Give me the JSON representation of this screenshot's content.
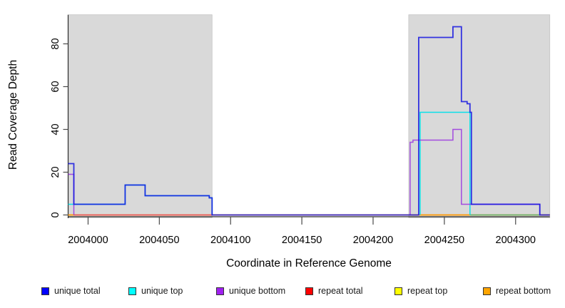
{
  "chart_data": {
    "type": "line",
    "subtype": "step-coverage-profile",
    "title": "",
    "xlabel": "Coordinate in Reference Genome",
    "ylabel": "Read Coverage Depth",
    "x_range": [
      2003986,
      2004324
    ],
    "y_range": [
      0,
      93.6
    ],
    "x_ticks": [
      2004000,
      2004050,
      2004100,
      2004150,
      2004200,
      2004250,
      2004300
    ],
    "y_ticks": [
      0,
      20,
      40,
      60,
      80
    ],
    "grid": false,
    "legend_position": "bottom",
    "plot_bg": "#ffffff",
    "shaded_regions": [
      {
        "name": "shaded-region-left",
        "x_start": 2003986,
        "x_end": 2004087,
        "color": "#d9d9d9",
        "edge": "#c4c4c4"
      },
      {
        "name": "shaded-region-right",
        "x_start": 2004225,
        "x_end": 2004324,
        "color": "#d9d9d9",
        "edge": "#c4c4c4"
      }
    ],
    "series": [
      {
        "name": "repeat top",
        "color": "#ffff00",
        "draw_color": "#ffff00",
        "width": 1.3,
        "opacity": 1,
        "paths": [
          [
            [
              2003986,
              0
            ],
            [
              2004324,
              0
            ]
          ]
        ]
      },
      {
        "name": "repeat total",
        "color": "#ff0000",
        "draw_color": "#ff0000",
        "width": 1.3,
        "opacity": 1,
        "paths": [
          [
            [
              2003986,
              0
            ],
            [
              2004324,
              0
            ]
          ]
        ]
      },
      {
        "name": "repeat bottom",
        "color": "#ffa500",
        "draw_color": "#ff9d00",
        "width": 1.5,
        "opacity": 1,
        "paths": [
          [
            [
              2003986,
              0
            ],
            [
              2004324,
              0
            ]
          ]
        ]
      },
      {
        "name": "overlap repeat-total and unique-bottom at zero",
        "color": "#e85565",
        "draw_color": "#e85565",
        "width": 1.4,
        "opacity": 1,
        "paths": [
          [
            [
              2003990,
              0
            ],
            [
              2004087,
              0
            ]
          ]
        ]
      },
      {
        "name": "overlap unique-top and repeat-top at zero",
        "color": "#5cb87a",
        "draw_color": "#5cb87a",
        "width": 1.4,
        "opacity": 1,
        "paths": [
          [
            [
              2004268,
              0
            ],
            [
              2004317,
              0
            ]
          ]
        ]
      },
      {
        "name": "unique top",
        "color": "#00ffff",
        "draw_color": "#00e0ea",
        "width": 1.5,
        "opacity": 0.95,
        "paths": [
          [
            [
              2003986,
              5
            ],
            [
              2004026,
              5
            ],
            [
              2004026,
              14
            ],
            [
              2004040,
              14
            ],
            [
              2004040,
              9
            ],
            [
              2004085,
              9
            ],
            [
              2004085,
              8
            ],
            [
              2004087,
              8
            ],
            [
              2004087,
              0
            ]
          ],
          [
            [
              2004233,
              0
            ],
            [
              2004233,
              48
            ],
            [
              2004268,
              48
            ],
            [
              2004268,
              0
            ]
          ]
        ]
      },
      {
        "name": "unique bottom",
        "color": "#a020f0",
        "draw_color": "#9932e0",
        "width": 1.5,
        "opacity": 0.85,
        "paths": [
          [
            [
              2003986,
              19
            ],
            [
              2003990,
              19
            ],
            [
              2003990,
              0
            ]
          ],
          [
            [
              2004226,
              0
            ],
            [
              2004226,
              34
            ],
            [
              2004228,
              34
            ],
            [
              2004228,
              35
            ],
            [
              2004256,
              35
            ],
            [
              2004256,
              40
            ],
            [
              2004262,
              40
            ],
            [
              2004262,
              5
            ],
            [
              2004317,
              5
            ],
            [
              2004317,
              0
            ]
          ]
        ]
      },
      {
        "name": "unique total",
        "color": "#0000ff",
        "draw_color": "#1414e0",
        "width": 1.8,
        "opacity": 0.85,
        "paths": [
          [
            [
              2003986,
              24
            ],
            [
              2003990,
              24
            ],
            [
              2003990,
              5
            ],
            [
              2004026,
              5
            ],
            [
              2004026,
              14
            ],
            [
              2004040,
              14
            ],
            [
              2004040,
              9
            ],
            [
              2004085,
              9
            ],
            [
              2004085,
              8
            ],
            [
              2004087,
              8
            ],
            [
              2004087,
              0
            ],
            [
              2004232,
              0
            ],
            [
              2004232,
              83
            ],
            [
              2004256,
              83
            ],
            [
              2004256,
              88
            ],
            [
              2004262,
              88
            ],
            [
              2004262,
              53
            ],
            [
              2004266,
              53
            ],
            [
              2004266,
              52
            ],
            [
              2004268,
              52
            ],
            [
              2004268,
              48
            ],
            [
              2004269,
              48
            ],
            [
              2004269,
              5
            ],
            [
              2004317,
              5
            ],
            [
              2004317,
              0
            ],
            [
              2004324,
              0
            ]
          ]
        ]
      }
    ],
    "legend": [
      {
        "label": "unique total",
        "color": "#0000ff"
      },
      {
        "label": "unique top",
        "color": "#00ffff"
      },
      {
        "label": "unique bottom",
        "color": "#a020f0"
      },
      {
        "label": "repeat total",
        "color": "#ff0000"
      },
      {
        "label": "repeat top",
        "color": "#ffff00"
      },
      {
        "label": "repeat bottom",
        "color": "#ffa500"
      }
    ]
  }
}
